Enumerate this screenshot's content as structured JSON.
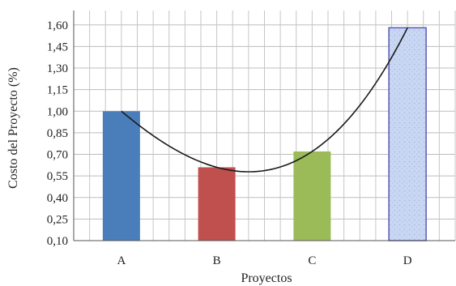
{
  "chart_data": {
    "type": "bar",
    "categories": [
      "A",
      "B",
      "C",
      "D"
    ],
    "values": [
      1.0,
      0.61,
      0.72,
      1.58
    ],
    "bar_colors": [
      "#4a7ebb",
      "#c0504d",
      "#9bbb59",
      "#c9d7f2"
    ],
    "bar_outline_D": "#5b5bb5",
    "trendline": {
      "type": "polynomial",
      "color": "#1a1a1a"
    },
    "xlabel": "Proyectos",
    "ylabel": "Costo del Proyecto (%)",
    "ylim": [
      0.1,
      1.7
    ],
    "yticks": [
      "0,10",
      "0,25",
      "0,40",
      "0,55",
      "0,70",
      "0,85",
      "1,00",
      "1,15",
      "1,30",
      "1,45",
      "1,60"
    ],
    "ytick_values": [
      0.1,
      0.25,
      0.4,
      0.55,
      0.7,
      0.85,
      1.0,
      1.15,
      1.3,
      1.45,
      1.6
    ],
    "grid": true
  }
}
